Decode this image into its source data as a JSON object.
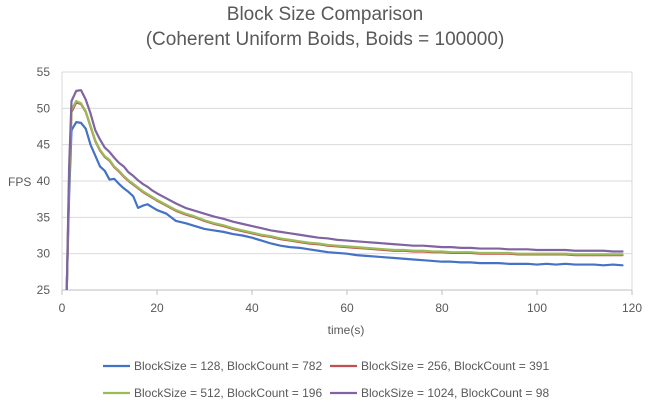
{
  "chart_data": {
    "type": "line",
    "title_lines": [
      "Block Size Comparison",
      "(Coherent Uniform Boids, Boids = 100000)"
    ],
    "xlabel": "time(s)",
    "ylabel": "FPS",
    "xlim": [
      0,
      120
    ],
    "ylim": [
      25,
      55
    ],
    "xticks": [
      "0",
      "20",
      "40",
      "60",
      "80",
      "100",
      "120"
    ],
    "yticks": [
      "25",
      "30",
      "35",
      "40",
      "45",
      "50",
      "55"
    ],
    "grid": "horizontal",
    "legend_position": "bottom",
    "series": [
      {
        "name": "BlockSize = 128, BlockCount = 782",
        "color": "#4472c4",
        "x": [
          1,
          1.5,
          2,
          3,
          4,
          5,
          6,
          7,
          8,
          9,
          10,
          11,
          12,
          13,
          14,
          15,
          16,
          17,
          18,
          19,
          20,
          22,
          24,
          26,
          28,
          30,
          32,
          34,
          36,
          38,
          40,
          42,
          44,
          46,
          48,
          50,
          52,
          54,
          56,
          58,
          60,
          62,
          64,
          66,
          68,
          70,
          72,
          74,
          76,
          78,
          80,
          82,
          84,
          86,
          88,
          90,
          92,
          94,
          96,
          98,
          100,
          102,
          104,
          106,
          108,
          110,
          112,
          114,
          116,
          118
        ],
        "y": [
          25,
          38,
          47,
          48.1,
          48,
          47.2,
          45,
          43.5,
          42,
          41.4,
          40.2,
          40.3,
          39.6,
          39,
          38.5,
          37.9,
          36.3,
          36.6,
          36.8,
          36.4,
          36,
          35.5,
          34.5,
          34.2,
          33.8,
          33.4,
          33.2,
          33,
          32.7,
          32.5,
          32.2,
          31.8,
          31.4,
          31.1,
          30.9,
          30.8,
          30.6,
          30.4,
          30.2,
          30.1,
          30,
          29.8,
          29.7,
          29.6,
          29.5,
          29.4,
          29.3,
          29.2,
          29.1,
          29,
          28.9,
          28.9,
          28.8,
          28.8,
          28.7,
          28.7,
          28.7,
          28.6,
          28.6,
          28.6,
          28.5,
          28.6,
          28.5,
          28.6,
          28.5,
          28.5,
          28.5,
          28.4,
          28.5,
          28.4
        ]
      },
      {
        "name": "BlockSize = 256, BlockCount = 391",
        "color": "#c0504d",
        "x": [
          1,
          1.5,
          2,
          3,
          4,
          5,
          6,
          7,
          8,
          9,
          10,
          11,
          12,
          13,
          14,
          15,
          16,
          17,
          18,
          19,
          20,
          22,
          24,
          26,
          28,
          30,
          32,
          34,
          36,
          38,
          40,
          42,
          44,
          46,
          48,
          50,
          52,
          54,
          56,
          58,
          60,
          62,
          64,
          66,
          68,
          70,
          72,
          74,
          76,
          78,
          80,
          82,
          84,
          86,
          88,
          90,
          92,
          94,
          96,
          98,
          100,
          102,
          104,
          106,
          108,
          110,
          112,
          114,
          116,
          118
        ],
        "y": [
          25,
          40,
          49.5,
          50.8,
          50.6,
          49.5,
          47.5,
          45.5,
          44.2,
          43.3,
          42.8,
          41.9,
          41.3,
          40.6,
          40,
          39.5,
          39,
          38.5,
          38.1,
          37.7,
          37.3,
          36.6,
          35.9,
          35.4,
          35,
          34.5,
          34.1,
          33.8,
          33.4,
          33.1,
          32.8,
          32.5,
          32.3,
          32,
          31.8,
          31.6,
          31.4,
          31.3,
          31.1,
          31,
          30.9,
          30.8,
          30.7,
          30.6,
          30.5,
          30.4,
          30.4,
          30.3,
          30.3,
          30.2,
          30.2,
          30.1,
          30.1,
          30.1,
          30,
          30,
          30,
          30,
          29.9,
          29.9,
          29.9,
          29.9,
          29.9,
          29.9,
          29.8,
          29.8,
          29.8,
          29.8,
          29.8,
          29.8
        ]
      },
      {
        "name": "BlockSize = 512, BlockCount = 196",
        "color": "#9bbb59",
        "x": [
          1,
          1.5,
          2,
          3,
          4,
          5,
          6,
          7,
          8,
          9,
          10,
          11,
          12,
          13,
          14,
          15,
          16,
          17,
          18,
          19,
          20,
          22,
          24,
          26,
          28,
          30,
          32,
          34,
          36,
          38,
          40,
          42,
          44,
          46,
          48,
          50,
          52,
          54,
          56,
          58,
          60,
          62,
          64,
          66,
          68,
          70,
          72,
          74,
          76,
          78,
          80,
          82,
          84,
          86,
          88,
          90,
          92,
          94,
          96,
          98,
          100,
          102,
          104,
          106,
          108,
          110,
          112,
          114,
          116,
          118
        ],
        "y": [
          25,
          40,
          49.8,
          51,
          50.7,
          49.6,
          47.6,
          45.6,
          44.3,
          43.4,
          42.9,
          42,
          41.4,
          40.7,
          40.1,
          39.6,
          39.1,
          38.6,
          38.2,
          37.8,
          37.4,
          36.7,
          36,
          35.5,
          35.1,
          34.6,
          34.2,
          33.9,
          33.5,
          33.2,
          32.9,
          32.6,
          32.4,
          32.1,
          31.9,
          31.7,
          31.5,
          31.4,
          31.2,
          31.1,
          31,
          30.9,
          30.8,
          30.7,
          30.6,
          30.5,
          30.5,
          30.4,
          30.4,
          30.3,
          30.3,
          30.2,
          30.2,
          30.2,
          30.1,
          30.1,
          30.1,
          30.1,
          30,
          30,
          30,
          30,
          30,
          30,
          29.9,
          29.9,
          29.9,
          29.9,
          29.9,
          29.9
        ]
      },
      {
        "name": "BlockSize = 1024, BlockCount = 98",
        "color": "#8064a2",
        "x": [
          1,
          1.5,
          2,
          3,
          4,
          5,
          6,
          7,
          8,
          9,
          10,
          11,
          12,
          13,
          14,
          15,
          16,
          17,
          18,
          19,
          20,
          22,
          24,
          26,
          28,
          30,
          32,
          34,
          36,
          38,
          40,
          42,
          44,
          46,
          48,
          50,
          52,
          54,
          56,
          58,
          60,
          62,
          64,
          66,
          68,
          70,
          72,
          74,
          76,
          78,
          80,
          82,
          84,
          86,
          88,
          90,
          92,
          94,
          96,
          98,
          100,
          102,
          104,
          106,
          108,
          110,
          112,
          114,
          116,
          118
        ],
        "y": [
          25,
          42,
          51,
          52.4,
          52.5,
          51.2,
          49.3,
          47,
          45.7,
          44.6,
          44,
          43.2,
          42.5,
          42,
          41.2,
          40.7,
          40.1,
          39.6,
          39.2,
          38.7,
          38.3,
          37.6,
          36.9,
          36.3,
          35.9,
          35.5,
          35.1,
          34.8,
          34.4,
          34.1,
          33.8,
          33.5,
          33.2,
          33,
          32.8,
          32.6,
          32.4,
          32.2,
          32.1,
          31.9,
          31.8,
          31.7,
          31.6,
          31.5,
          31.4,
          31.3,
          31.2,
          31.1,
          31.1,
          31,
          30.9,
          30.9,
          30.8,
          30.8,
          30.7,
          30.7,
          30.7,
          30.6,
          30.6,
          30.6,
          30.5,
          30.5,
          30.5,
          30.5,
          30.4,
          30.4,
          30.4,
          30.4,
          30.3,
          30.3
        ]
      }
    ]
  }
}
